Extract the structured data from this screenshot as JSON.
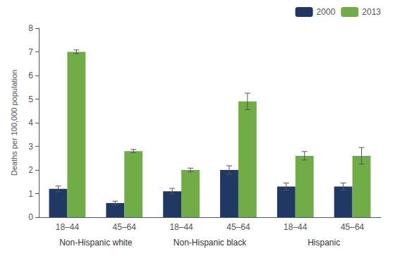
{
  "chart_data": {
    "type": "bar",
    "categories": [
      "18–44",
      "45–64",
      "18–44",
      "45–64",
      "18–44",
      "45–64"
    ],
    "groups": [
      "Non-Hispanic white",
      "Non-Hispanic black",
      "Hispanic"
    ],
    "series": [
      {
        "name": "2000",
        "color": "#1f3864",
        "values": [
          1.2,
          0.6,
          1.1,
          2.0,
          1.3,
          1.3
        ],
        "errors": [
          0.12,
          0.08,
          0.12,
          0.18,
          0.15,
          0.15
        ]
      },
      {
        "name": "2013",
        "color": "#70ad47",
        "values": [
          7.0,
          2.8,
          2.0,
          4.9,
          2.6,
          2.6
        ],
        "errors": [
          0.08,
          0.07,
          0.08,
          0.35,
          0.18,
          0.35
        ]
      }
    ],
    "ylabel": "Deaths per 100,000 population",
    "ylim": [
      0,
      8
    ],
    "yticks": [
      0,
      1,
      2,
      3,
      4,
      5,
      6,
      7,
      8
    ],
    "grid": false,
    "legend": "upper right"
  }
}
